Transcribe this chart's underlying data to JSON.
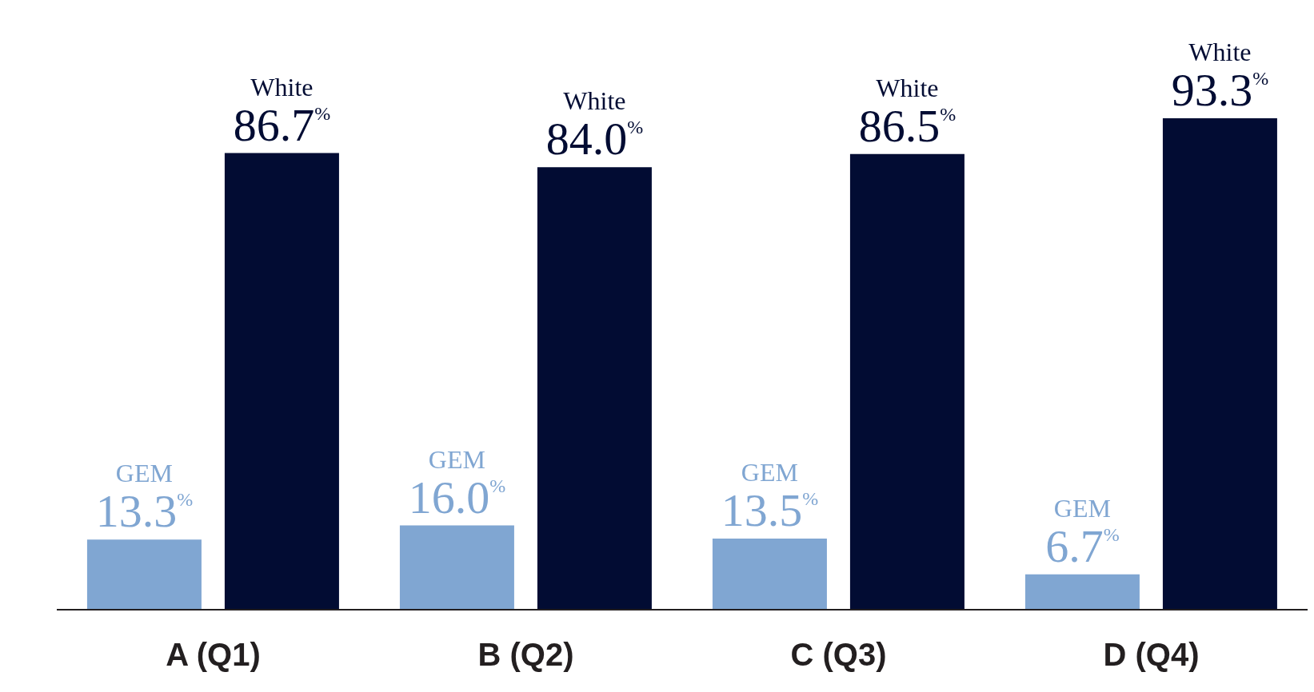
{
  "chart_data": {
    "type": "bar",
    "categories": [
      "A (Q1)",
      "B (Q2)",
      "C (Q3)",
      "D (Q4)"
    ],
    "series": [
      {
        "name": "GEM",
        "color": "#80a6d2",
        "values": [
          13.3,
          16.0,
          13.5,
          6.7
        ],
        "value_labels": [
          "13.3$^{%}$",
          "16.0$^{%}$",
          "13.5$^{%}$",
          "6.7$^{%}$"
        ]
      },
      {
        "name": "White",
        "color": "#020c33",
        "values": [
          86.7,
          84.0,
          86.5,
          93.3
        ],
        "value_labels": [
          "86.7$^{%}$",
          "84.0$^{%}$",
          "86.5$^{%}$",
          "93.3$^{%}$"
        ]
      }
    ],
    "grid": false,
    "legend": false
  }
}
